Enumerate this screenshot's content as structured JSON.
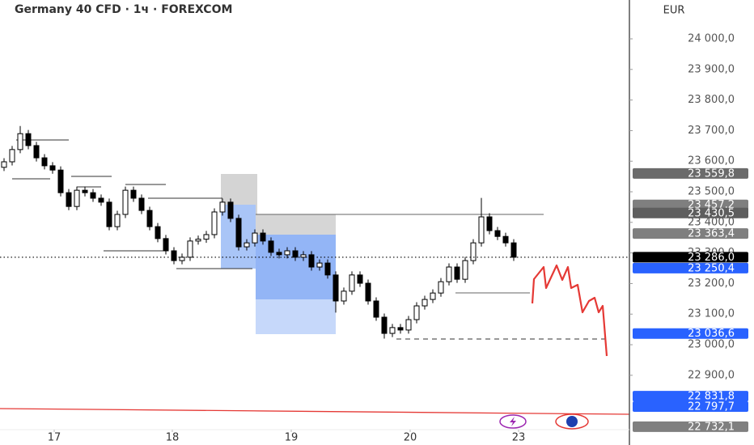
{
  "chart_data": {
    "type": "candlestick",
    "title": "Germany 40 CFD · 1ч · FOREXCOM",
    "currency": "EUR",
    "up_color": "#ffffff",
    "down_color": "#000000",
    "outline_color": "#000000",
    "xlim": [
      0,
      77.8
    ],
    "ylim": [
      22725,
      24127
    ],
    "xticks": [
      {
        "value": 6.7,
        "label": "17"
      },
      {
        "value": 21.3,
        "label": "18"
      },
      {
        "value": 36.0,
        "label": "19"
      },
      {
        "value": 50.7,
        "label": "20"
      },
      {
        "value": 64.1,
        "label": "23"
      }
    ],
    "yticks": [
      {
        "value": 22900,
        "label": "22 900,0"
      },
      {
        "value": 23000,
        "label": "23 000,0"
      },
      {
        "value": 23100,
        "label": "23 100,0"
      },
      {
        "value": 23200,
        "label": "23 200,0"
      },
      {
        "value": 23300,
        "label": "23 300,0"
      },
      {
        "value": 23400,
        "label": "23 400,0"
      },
      {
        "value": 23500,
        "label": "23 500,0"
      },
      {
        "value": 23600,
        "label": "23 600,0"
      },
      {
        "value": 23700,
        "label": "23 700,0"
      },
      {
        "value": 23800,
        "label": "23 800,0"
      },
      {
        "value": 23900,
        "label": "23 900,0"
      },
      {
        "value": 24000,
        "label": "24 000,0"
      }
    ],
    "price_labels": [
      {
        "value": 23559.8,
        "label": "23 559,8",
        "color": "#6b6b6b"
      },
      {
        "value": 23457.2,
        "label": "23 457,2",
        "color": "#7f7f7f"
      },
      {
        "value": 23430.5,
        "label": "23 430,5",
        "color": "#5e5e5e"
      },
      {
        "value": 23363.4,
        "label": "23 363,4",
        "color": "#7f7f7f"
      },
      {
        "value": 23286.0,
        "label": "23 286,0",
        "color": "#000000",
        "line": "dotted"
      },
      {
        "value": 23250.4,
        "label": "23 250,4",
        "color": "#2962ff"
      },
      {
        "value": 23036.6,
        "label": "23 036,6",
        "color": "#2962ff"
      },
      {
        "value": 22831.8,
        "label": "22 831,8",
        "color": "#2962ff"
      },
      {
        "value": 22797.7,
        "label": "22 797,7",
        "color": "#2962ff"
      },
      {
        "value": 22732.1,
        "label": "22 732,1",
        "color": "#7f7f7f"
      }
    ],
    "x": [
      0.5,
      1.5,
      2.5,
      3.5,
      4.5,
      5.5,
      6.5,
      7.5,
      8.5,
      9.5,
      10.5,
      11.5,
      12.5,
      13.5,
      14.5,
      15.5,
      16.5,
      17.5,
      18.5,
      19.5,
      20.5,
      21.5,
      22.5,
      23.5,
      24.5,
      25.5,
      26.5,
      27.5,
      28.5,
      29.5,
      30.5,
      31.5,
      32.5,
      33.5,
      34.5,
      35.5,
      36.5,
      37.5,
      38.5,
      39.5,
      40.5,
      41.5,
      42.5,
      43.5,
      44.5,
      45.5,
      46.5,
      47.5,
      48.5,
      49.5,
      50.5,
      51.5,
      52.5,
      53.5,
      54.5,
      55.5,
      56.5,
      57.5,
      58.5,
      59.5,
      60.5,
      61.5,
      62.5,
      63.5
    ],
    "open": [
      23580,
      23598,
      23638,
      23690,
      23651,
      23611,
      23585,
      23571,
      23497,
      23452,
      23505,
      23497,
      23479,
      23466,
      23386,
      23426,
      23505,
      23479,
      23439,
      23386,
      23347,
      23307,
      23275,
      23286,
      23339,
      23345,
      23360,
      23434,
      23466,
      23413,
      23320,
      23333,
      23365,
      23339,
      23302,
      23294,
      23307,
      23286,
      23294,
      23254,
      23267,
      23228,
      23143,
      23175,
      23228,
      23201,
      23143,
      23090,
      23037,
      23056,
      23048,
      23082,
      23127,
      23148,
      23169,
      23206,
      23254,
      23214,
      23275,
      23333,
      23418,
      23373,
      23354,
      23333
    ],
    "high": [
      23610,
      23650,
      23715,
      23702,
      23663,
      23623,
      23597,
      23583,
      23509,
      23517,
      23517,
      23509,
      23491,
      23478,
      23438,
      23517,
      23517,
      23491,
      23451,
      23398,
      23359,
      23319,
      23298,
      23351,
      23357,
      23372,
      23446,
      23478,
      23478,
      23425,
      23345,
      23377,
      23377,
      23351,
      23314,
      23319,
      23319,
      23306,
      23306,
      23279,
      23279,
      23240,
      23187,
      23240,
      23240,
      23213,
      23155,
      23102,
      23068,
      23068,
      23094,
      23139,
      23160,
      23181,
      23218,
      23266,
      23266,
      23287,
      23345,
      23480,
      23430,
      23385,
      23366,
      23345
    ],
    "low": [
      23568,
      23586,
      23626,
      23639,
      23599,
      23573,
      23559,
      23485,
      23440,
      23440,
      23485,
      23467,
      23454,
      23374,
      23374,
      23414,
      23467,
      23427,
      23374,
      23335,
      23295,
      23263,
      23263,
      23274,
      23327,
      23333,
      23348,
      23422,
      23401,
      23308,
      23308,
      23321,
      23327,
      23290,
      23282,
      23282,
      23274,
      23274,
      23242,
      23242,
      23216,
      23105,
      23131,
      23163,
      23189,
      23131,
      23078,
      23020,
      23025,
      23036,
      23036,
      23070,
      23115,
      23136,
      23157,
      23194,
      23202,
      23202,
      23263,
      23321,
      23361,
      23342,
      23321,
      23274
    ],
    "close": [
      23598,
      23638,
      23690,
      23651,
      23611,
      23585,
      23571,
      23497,
      23452,
      23505,
      23497,
      23479,
      23466,
      23386,
      23426,
      23505,
      23479,
      23439,
      23386,
      23347,
      23307,
      23275,
      23286,
      23339,
      23345,
      23360,
      23434,
      23466,
      23413,
      23320,
      23333,
      23365,
      23339,
      23302,
      23294,
      23307,
      23286,
      23294,
      23254,
      23267,
      23228,
      23143,
      23175,
      23228,
      23201,
      23143,
      23090,
      23037,
      23056,
      23048,
      23082,
      23127,
      23148,
      23169,
      23206,
      23254,
      23214,
      23275,
      23333,
      23418,
      23373,
      23354,
      23333,
      23286
    ]
  }
}
